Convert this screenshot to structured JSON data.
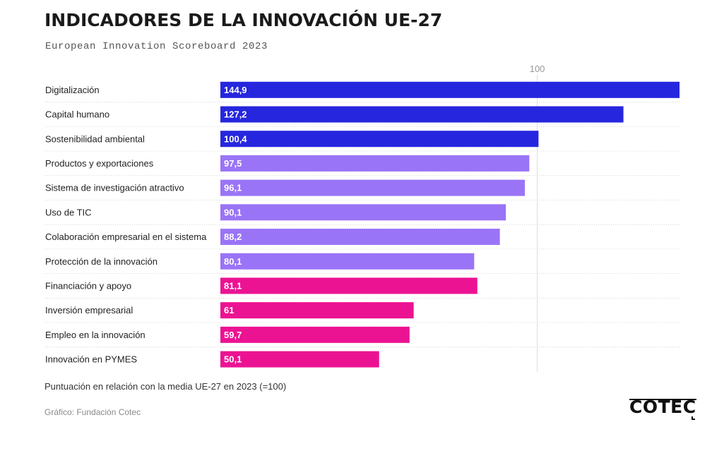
{
  "title": "INDICADORES DE LA INNOVACIÓN UE-27",
  "subtitle": "European Innovation Scoreboard 2023",
  "note": "Puntuación en relación con la media UE-27 en 2023 (=100)",
  "source": "Gráfico: Fundación Cotec",
  "logo_text": "COTEC",
  "colors": {
    "group1": "#2626de",
    "group2": "#9a74f6",
    "group3": "#ec1393",
    "reference_line": "#dddddd",
    "row_divider": "#cccccc"
  },
  "chart_data": {
    "type": "bar",
    "orientation": "horizontal",
    "title": "INDICADORES DE LA INNOVACIÓN UE-27",
    "subtitle": "European Innovation Scoreboard 2023",
    "reference_value": 100,
    "reference_label": "100",
    "xlim": [
      0,
      144.9
    ],
    "categories": [
      "Digitalización",
      "Capital humano",
      "Sostenibilidad ambiental",
      "Productos y exportaciones",
      "Sistema de investigación atractivo",
      "Uso de TIC",
      "Colaboración empresarial en el sistema",
      "Protección de la innovación",
      "Financiación y apoyo",
      "Inversión empresarial",
      "Empleo en la innovación",
      "Innovación en PYMES"
    ],
    "values": [
      144.9,
      127.2,
      100.4,
      97.5,
      96.1,
      90.1,
      88.2,
      80.1,
      81.1,
      61,
      59.7,
      50.1
    ],
    "value_labels": [
      "144,9",
      "127,2",
      "100,4",
      "97,5",
      "96,1",
      "90,1",
      "88,2",
      "80,1",
      "81,1",
      "61",
      "59,7",
      "50,1"
    ],
    "groups": [
      1,
      1,
      1,
      2,
      2,
      2,
      2,
      2,
      3,
      3,
      3,
      3
    ]
  }
}
